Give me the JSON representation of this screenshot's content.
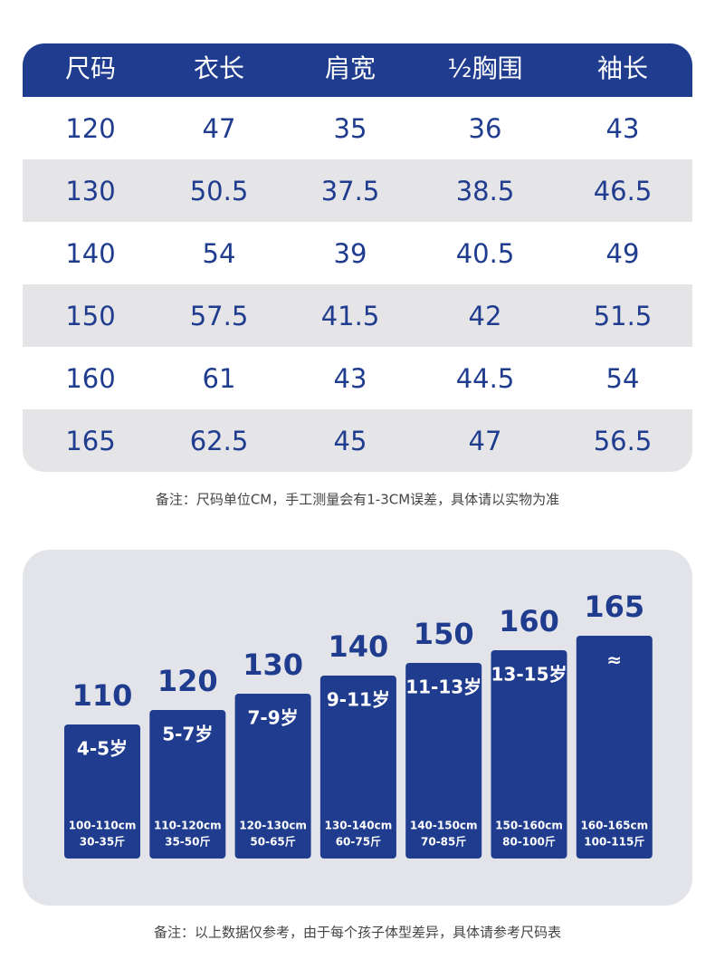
{
  "table": {
    "header": [
      "尺码",
      "衣长",
      "肩宽",
      "½胸围",
      "袖长"
    ],
    "rows": [
      [
        120,
        47,
        35,
        36,
        43
      ],
      [
        130,
        50.5,
        37.5,
        38.5,
        46.5
      ],
      [
        140,
        54,
        39,
        40.5,
        49
      ],
      [
        150,
        57.5,
        41.5,
        42,
        51.5
      ],
      [
        160,
        61,
        43,
        44.5,
        54
      ],
      [
        165,
        62.5,
        45,
        47,
        56.5
      ]
    ]
  },
  "table_note": "备注：尺码单位CM，手工测量会有1-3CM误差，具体请以实物为准",
  "sizes": [
    {
      "size": 110,
      "age": "4-5岁",
      "height": "100-110cm",
      "weight": "30-35斤"
    },
    {
      "size": 120,
      "age": "5-7岁",
      "height": "110-120cm",
      "weight": "35-50斤"
    },
    {
      "size": 130,
      "age": "7-9岁",
      "height": "120-130cm",
      "weight": "50-65斤"
    },
    {
      "size": 140,
      "age": "9-11岁",
      "height": "130-140cm",
      "weight": "60-75斤"
    },
    {
      "size": 150,
      "age": "11-13岁",
      "height": "140-150cm",
      "weight": "70-85斤"
    },
    {
      "size": 160,
      "age": "13-15岁",
      "height": "150-160cm",
      "weight": "80-100斤"
    },
    {
      "size": 165,
      "age": "≈",
      "height": "160-165cm",
      "weight": "100-115斤"
    }
  ],
  "sizes_note": "备注：以上数据仅参考，由于每个孩子体型差异，具体请参考尺码表"
}
